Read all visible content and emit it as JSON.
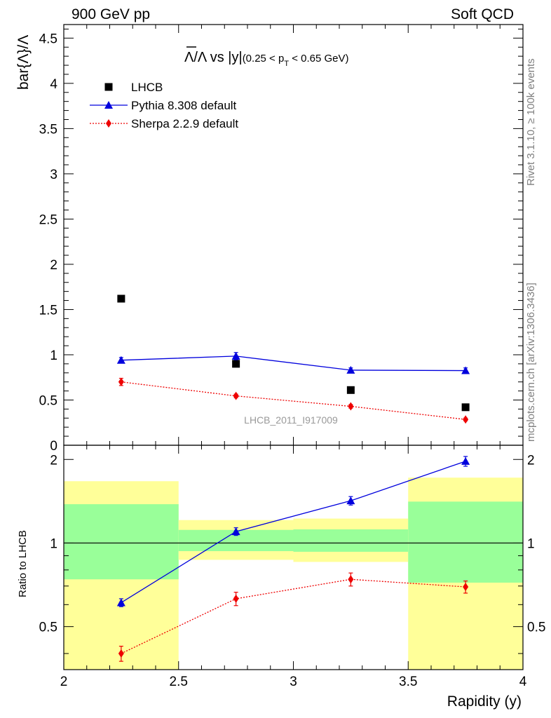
{
  "header": {
    "left": "900 GeV pp",
    "right": "Soft QCD"
  },
  "side_labels": {
    "rivet": "Rivet 3.1.10, ≥ 100k events",
    "mcplots": "mcplots.cern.ch [arXiv:1306.3436]"
  },
  "chart_data": [
    {
      "type": "scatter",
      "title_main": "Λ/Λ vs |y|",
      "title_cut": "(0.25 < p",
      "title_sub": "T",
      "title_cut_end": " < 0.65 GeV)",
      "ylabel": "bar{Λ}/Λ",
      "xlabel": "",
      "xlim": [
        2,
        4
      ],
      "ylim": [
        0,
        4.65
      ],
      "yticks": [
        "0",
        "0.5",
        "1",
        "1.5",
        "2",
        "2.5",
        "3",
        "3.5",
        "4",
        "4.5"
      ],
      "watermark": "LHCB_2011_I917009",
      "legend_position": "top-left",
      "series": [
        {
          "name": "LHCB",
          "color": "#000000",
          "marker": "square",
          "line": "none",
          "x": [
            2.25,
            2.75,
            3.25,
            3.75
          ],
          "y": [
            1.62,
            0.9,
            0.61,
            0.42
          ]
        },
        {
          "name": "Pythia 8.308 default",
          "color": "#0000dd",
          "marker": "triangle",
          "line": "solid",
          "x": [
            2.25,
            2.75,
            3.25,
            3.75
          ],
          "y": [
            0.94,
            0.985,
            0.83,
            0.825
          ],
          "err": [
            0.03,
            0.04,
            0.025,
            0.03
          ]
        },
        {
          "name": "Sherpa 2.2.9 default",
          "color": "#ee0000",
          "marker": "diamond",
          "line": "dotted",
          "x": [
            2.25,
            2.75,
            3.25,
            3.75
          ],
          "y": [
            0.7,
            0.545,
            0.43,
            0.285
          ],
          "err": [
            0.04,
            0.02,
            0.02,
            0.015
          ]
        }
      ]
    },
    {
      "type": "scatter",
      "ylabel": "Ratio to LHCB",
      "xlabel": "Rapidity (y)",
      "xlim": [
        2,
        4
      ],
      "ylim": [
        0.35,
        2.25
      ],
      "xticks": [
        "2",
        "2.5",
        "3",
        "3.5",
        "4"
      ],
      "yticks": [
        "0.5",
        "1",
        "2"
      ],
      "reference_line": 1,
      "bands": [
        {
          "x0": 2.0,
          "x1": 2.5,
          "yellow": [
            0.35,
            1.67
          ],
          "green": [
            0.74,
            1.38
          ]
        },
        {
          "x0": 2.5,
          "x1": 3.0,
          "yellow": [
            0.87,
            1.21
          ],
          "green": [
            0.935,
            1.115
          ]
        },
        {
          "x0": 3.0,
          "x1": 3.5,
          "yellow": [
            0.855,
            1.225
          ],
          "green": [
            0.93,
            1.12
          ]
        },
        {
          "x0": 3.5,
          "x1": 4.0,
          "yellow": [
            0.35,
            1.72
          ],
          "green": [
            0.72,
            1.41
          ]
        }
      ],
      "band_colors": {
        "yellow": "#ffff99",
        "green": "#99ff99"
      },
      "series": [
        {
          "name": "Pythia 8.308 default",
          "color": "#0000dd",
          "marker": "triangle",
          "line": "solid",
          "x": [
            2.25,
            2.75,
            3.25,
            3.75
          ],
          "y": [
            0.61,
            1.1,
            1.42,
            1.97
          ],
          "err": [
            0.02,
            0.035,
            0.05,
            0.08
          ]
        },
        {
          "name": "Sherpa 2.2.9 default",
          "color": "#ee0000",
          "marker": "diamond",
          "line": "dotted",
          "x": [
            2.25,
            2.75,
            3.25,
            3.75
          ],
          "y": [
            0.4,
            0.63,
            0.74,
            0.695
          ],
          "err": [
            0.025,
            0.035,
            0.04,
            0.035
          ]
        }
      ]
    }
  ]
}
